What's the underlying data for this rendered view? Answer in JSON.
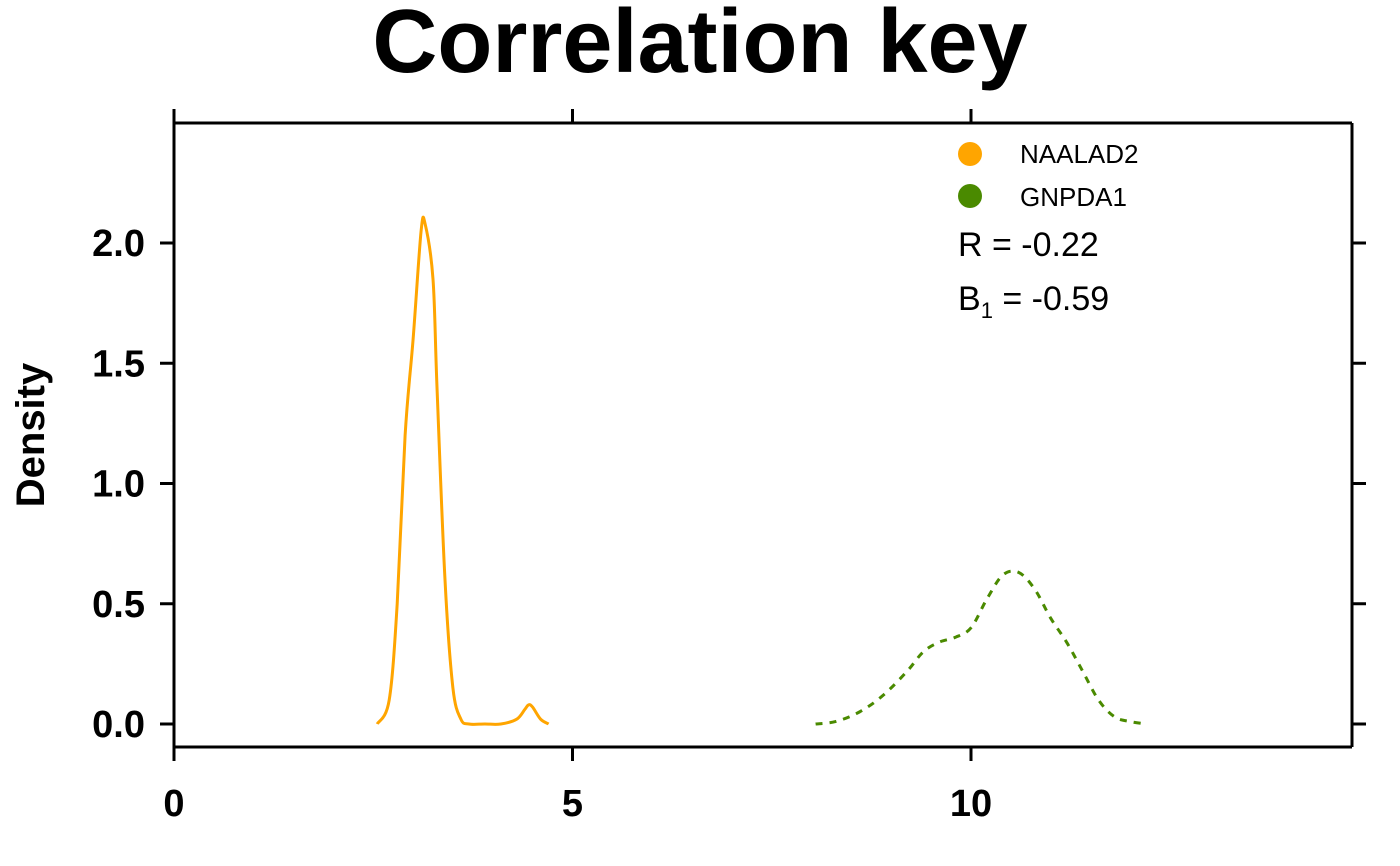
{
  "chart_data": {
    "type": "line",
    "title": "Correlation key",
    "xlabel": "",
    "ylabel": "Density",
    "xlim": [
      0,
      14.8
    ],
    "ylim": [
      -0.1,
      2.5
    ],
    "x_ticks": [
      0,
      5,
      10
    ],
    "x_tick_labels": [
      "0",
      "5",
      "10"
    ],
    "y_ticks": [
      0,
      0.5,
      1,
      1.5,
      2
    ],
    "y_tick_labels": [
      "0.0",
      "0.5",
      "1.0",
      "1.5",
      "2.0"
    ],
    "grid": false,
    "legend": {
      "position": "top-right",
      "marker": "filled-circle"
    },
    "series": [
      {
        "name": "NAALAD2",
        "color": "#FFA500",
        "dash": "solid",
        "x": [
          2.55,
          2.7,
          2.8,
          2.9,
          3.0,
          3.1,
          3.15,
          3.25,
          3.3,
          3.4,
          3.5,
          3.6,
          3.7,
          3.9,
          4.1,
          4.3,
          4.4,
          4.45,
          4.5,
          4.6,
          4.7
        ],
        "y": [
          0.0,
          0.1,
          0.5,
          1.2,
          1.6,
          2.05,
          2.08,
          1.85,
          1.4,
          0.6,
          0.15,
          0.02,
          0.0,
          0.0,
          0.0,
          0.02,
          0.06,
          0.08,
          0.07,
          0.02,
          0.0
        ]
      },
      {
        "name": "GNPDA1",
        "color": "#4A8A00",
        "dash": "dotted",
        "x": [
          8.05,
          8.3,
          8.6,
          8.9,
          9.2,
          9.4,
          9.6,
          9.8,
          10.0,
          10.2,
          10.4,
          10.6,
          10.8,
          11.0,
          11.2,
          11.4,
          11.6,
          11.8,
          12.0,
          12.2
        ],
        "y": [
          0.0,
          0.01,
          0.05,
          0.12,
          0.22,
          0.3,
          0.34,
          0.36,
          0.4,
          0.52,
          0.62,
          0.63,
          0.56,
          0.44,
          0.34,
          0.22,
          0.1,
          0.03,
          0.01,
          0.0
        ]
      }
    ],
    "annotations": {
      "r_label": "R = -0.22",
      "b_symbol": "B",
      "b_subscript": "1",
      "b_value": " = -0.59"
    }
  }
}
